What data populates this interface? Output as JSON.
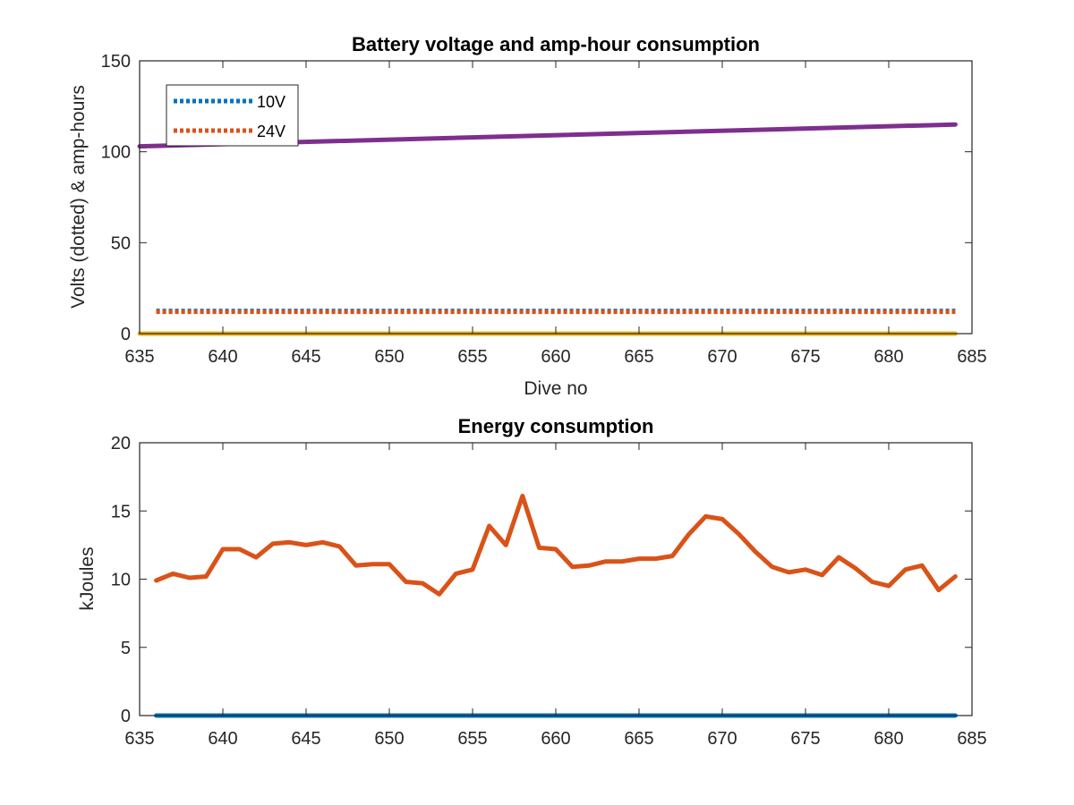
{
  "colors": {
    "blue": "#0072BD",
    "orange": "#D95319",
    "yellow": "#EDB120",
    "purple": "#7E2F8E",
    "axis": "#262626"
  },
  "chart_data": [
    {
      "type": "line",
      "title": "Battery voltage and amp-hour consumption",
      "xlabel": "Dive no",
      "ylabel": "Volts (dotted) & amp-hours",
      "xlim": [
        635,
        685
      ],
      "ylim": [
        0,
        150
      ],
      "xticks": [
        "635",
        "640",
        "645",
        "650",
        "655",
        "660",
        "665",
        "670",
        "675",
        "680",
        "685"
      ],
      "yticks": [
        "0",
        "50",
        "100",
        "150"
      ],
      "grid": false,
      "legend_position": "top-left",
      "series": [
        {
          "name": "10V",
          "style": "dotted",
          "color": "#0072BD",
          "x": [
            636,
            684
          ],
          "y": [
            12.5,
            12.5
          ]
        },
        {
          "name": "24V",
          "style": "dotted",
          "color": "#D95319",
          "x": [
            636,
            684
          ],
          "y": [
            12,
            12
          ]
        },
        {
          "style": "solid",
          "color": "#EDB120",
          "x": [
            635,
            684
          ],
          "y": [
            0,
            0
          ]
        },
        {
          "style": "solid",
          "color": "#7E2F8E",
          "x": [
            635,
            684
          ],
          "y": [
            103,
            115
          ]
        }
      ]
    },
    {
      "type": "line",
      "title": "Energy consumption",
      "ylabel": "kJoules",
      "xlim": [
        635,
        685
      ],
      "ylim": [
        0,
        20
      ],
      "xticks": [
        "635",
        "640",
        "645",
        "650",
        "655",
        "660",
        "665",
        "670",
        "675",
        "680",
        "685"
      ],
      "yticks": [
        "0",
        "5",
        "10",
        "15",
        "20"
      ],
      "grid": false,
      "series": [
        {
          "style": "solid",
          "color": "#0072BD",
          "x": [
            636,
            684
          ],
          "y": [
            0,
            0
          ]
        },
        {
          "style": "solid",
          "color": "#D95319",
          "x": [
            636,
            637,
            638,
            639,
            640,
            641,
            642,
            643,
            644,
            645,
            646,
            647,
            648,
            649,
            650,
            651,
            652,
            653,
            654,
            655,
            656,
            657,
            658,
            659,
            660,
            661,
            662,
            663,
            664,
            665,
            666,
            667,
            668,
            669,
            670,
            671,
            672,
            673,
            674,
            675,
            676,
            677,
            678,
            679,
            680,
            681,
            682,
            683,
            684
          ],
          "y": [
            9.9,
            10.4,
            10.1,
            10.2,
            12.2,
            12.2,
            11.6,
            12.6,
            12.7,
            12.5,
            12.7,
            12.4,
            11.0,
            11.1,
            11.1,
            9.8,
            9.7,
            8.9,
            10.4,
            10.7,
            13.9,
            12.5,
            16.1,
            12.3,
            12.2,
            10.9,
            11.0,
            11.3,
            11.3,
            11.5,
            11.5,
            11.7,
            13.3,
            14.6,
            14.4,
            13.3,
            12.0,
            10.9,
            10.5,
            10.7,
            10.3,
            11.6,
            10.8,
            9.8,
            9.5,
            10.7,
            11.0,
            9.2,
            10.2
          ]
        }
      ]
    }
  ]
}
